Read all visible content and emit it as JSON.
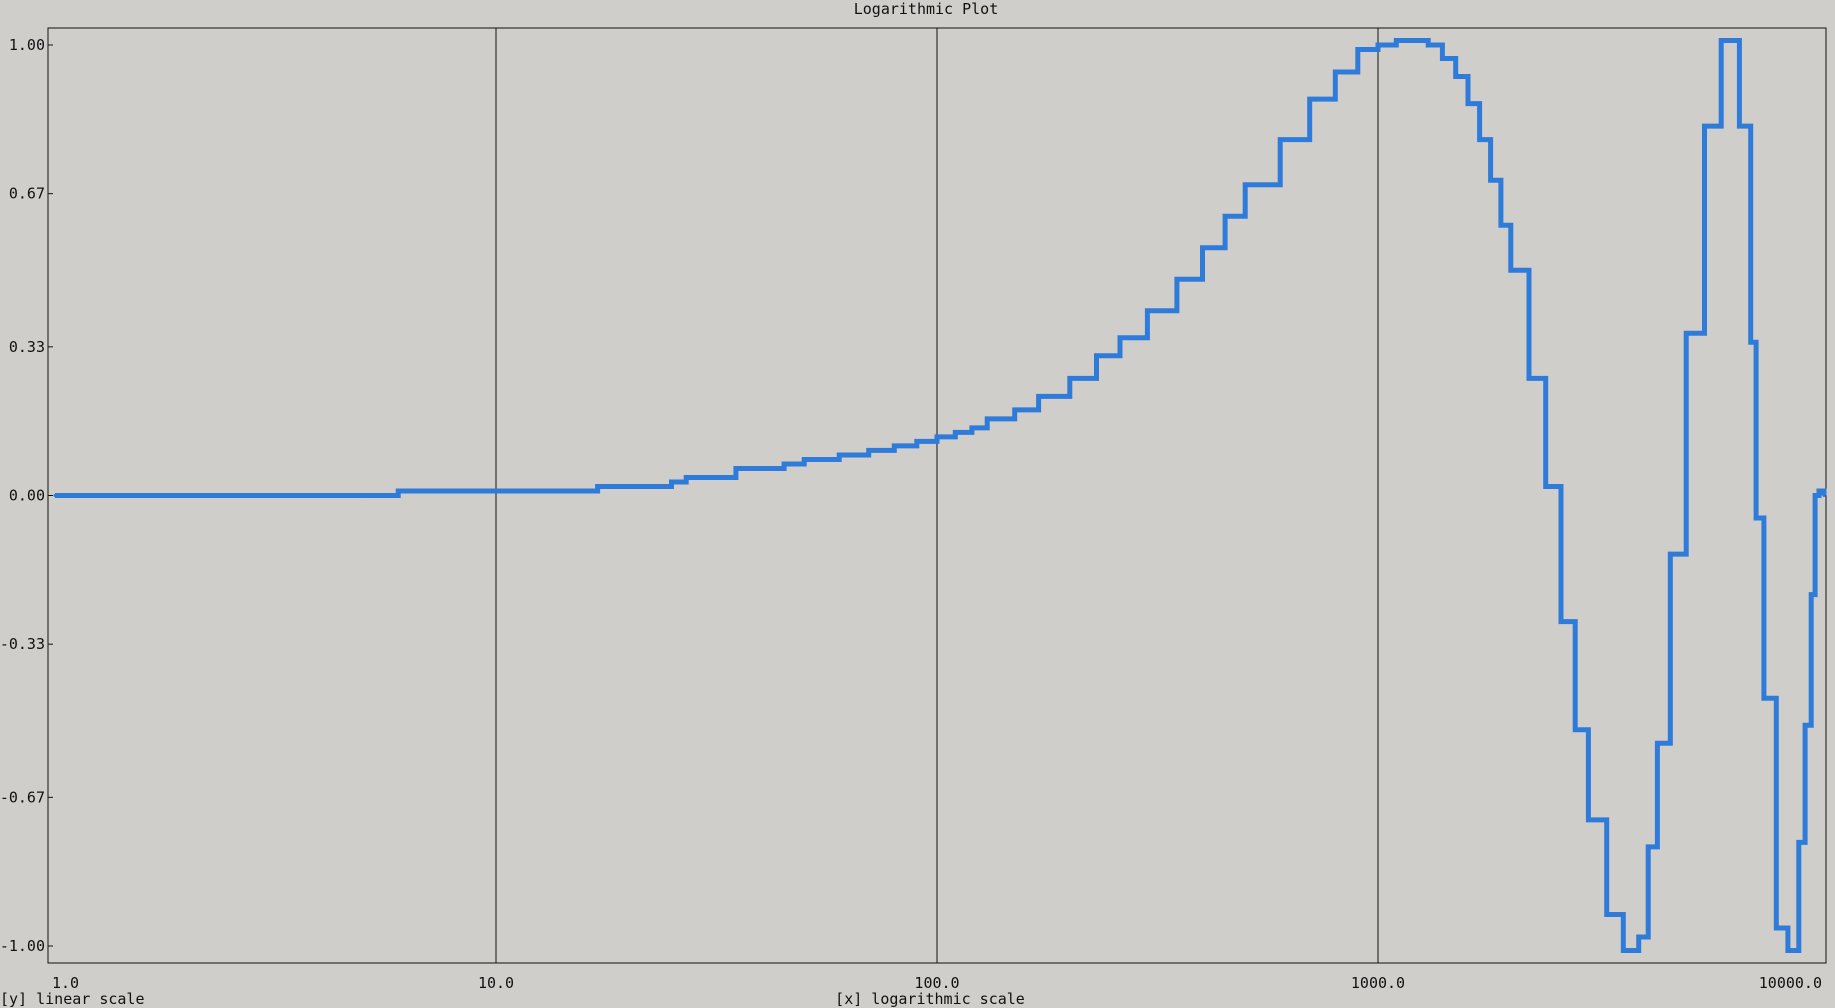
{
  "chart_data": {
    "type": "line",
    "title": "Logarithmic Plot",
    "xlabel": "[x] logarithmic scale",
    "ylabel": "[y] linear scale",
    "xscale": "log",
    "xlim": [
      1,
      10000
    ],
    "ylim": [
      -1,
      1
    ],
    "xticks": [
      "1.0",
      "10.0",
      "100.0",
      "1000.0",
      "10000.0"
    ],
    "yticks": [
      "1.00",
      "0.67",
      "0.33",
      "0.00",
      "-0.33",
      "-0.67",
      "-1.00"
    ],
    "grid": "vertical",
    "line_style": "step",
    "series": [
      {
        "color": "#2e7bd9",
        "x": [
          1,
          5,
          6,
          10,
          15,
          17,
          20,
          25,
          27,
          30,
          35,
          40,
          45,
          50,
          60,
          70,
          80,
          90,
          100,
          110,
          120,
          130,
          150,
          170,
          200,
          230,
          260,
          300,
          350,
          400,
          450,
          500,
          600,
          700,
          800,
          900,
          1000,
          1100,
          1200,
          1300,
          1400,
          1500,
          1600,
          1700,
          1800,
          1900,
          2000,
          2200,
          2400,
          2600,
          2800,
          3000,
          3300,
          3600,
          3900,
          4100,
          4300,
          4600,
          5000,
          5500,
          6000,
          6300,
          6600,
          7000,
          7200,
          7500,
          8000,
          8500,
          9000,
          9300,
          9600,
          9800,
          10000,
          10300
        ],
        "y": [
          0,
          0,
          0.01,
          0.01,
          0.01,
          0.02,
          0.02,
          0.03,
          0.04,
          0.04,
          0.06,
          0.06,
          0.07,
          0.08,
          0.09,
          0.1,
          0.11,
          0.12,
          0.13,
          0.14,
          0.15,
          0.17,
          0.19,
          0.22,
          0.26,
          0.31,
          0.35,
          0.41,
          0.48,
          0.55,
          0.62,
          0.69,
          0.79,
          0.88,
          0.94,
          0.99,
          1.0,
          1.01,
          1.01,
          1.0,
          0.97,
          0.93,
          0.87,
          0.79,
          0.7,
          0.6,
          0.5,
          0.26,
          0.02,
          -0.28,
          -0.52,
          -0.72,
          -0.93,
          -1.01,
          -0.98,
          -0.78,
          -0.55,
          -0.13,
          0.36,
          0.82,
          1.01,
          1.01,
          0.82,
          0.34,
          -0.05,
          -0.45,
          -0.96,
          -1.01,
          -0.77,
          -0.51,
          -0.22,
          0,
          0.01,
          0.0
        ]
      }
    ]
  }
}
